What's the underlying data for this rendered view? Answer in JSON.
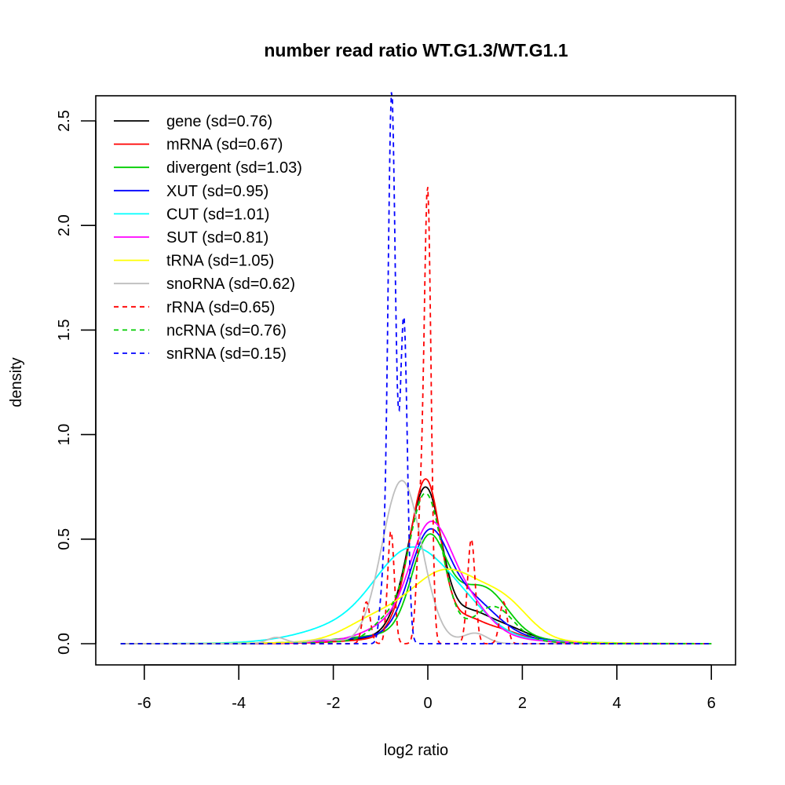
{
  "chart_data": {
    "type": "line",
    "title": "number read ratio WT.G1.3/WT.G1.1",
    "xlabel": "log2 ratio",
    "ylabel": "density",
    "xlim": [
      -6.5,
      6.0
    ],
    "ylim": [
      0,
      2.52
    ],
    "xticks": [
      -6,
      -4,
      -2,
      0,
      2,
      4,
      6
    ],
    "xtick_labels": [
      "-6",
      "-4",
      "-2",
      "0",
      "2",
      "4",
      "6"
    ],
    "yticks": [
      0.0,
      0.5,
      1.0,
      1.5,
      2.0,
      2.5
    ],
    "ytick_labels": [
      "0.0",
      "0.5",
      "1.0",
      "1.5",
      "2.0",
      "2.5"
    ],
    "grid": false,
    "legend_position": "top-left",
    "series": [
      {
        "name": "gene",
        "label": "gene (sd=0.76)",
        "sd": 0.76,
        "color": "#000000",
        "dash": "solid",
        "components": [
          [
            0.0,
            0.32,
            0.58
          ],
          [
            -0.35,
            0.35,
            0.18
          ],
          [
            0.85,
            0.35,
            0.08
          ],
          [
            1.5,
            0.5,
            0.06
          ],
          [
            0.3,
            1.4,
            0.05
          ]
        ]
      },
      {
        "name": "mRNA",
        "label": "mRNA (sd=0.67)",
        "sd": 0.67,
        "color": "#ff0000",
        "dash": "solid",
        "components": [
          [
            0.0,
            0.3,
            0.6
          ],
          [
            -0.3,
            0.35,
            0.2
          ],
          [
            0.8,
            0.3,
            0.06
          ],
          [
            1.4,
            0.5,
            0.05
          ],
          [
            0.2,
            1.3,
            0.04
          ]
        ]
      },
      {
        "name": "divergent",
        "label": "divergent (sd=1.03)",
        "sd": 1.03,
        "color": "#00cd00",
        "dash": "solid",
        "components": [
          [
            0.0,
            0.35,
            0.4
          ],
          [
            1.3,
            0.45,
            0.17
          ],
          [
            0.6,
            0.5,
            0.12
          ],
          [
            0.2,
            1.5,
            0.06
          ]
        ]
      },
      {
        "name": "XUT",
        "label": "XUT (sd=0.95)",
        "sd": 0.95,
        "color": "#0000ff",
        "dash": "solid",
        "components": [
          [
            0.0,
            0.4,
            0.42
          ],
          [
            0.8,
            0.6,
            0.18
          ],
          [
            0.2,
            1.5,
            0.05
          ]
        ]
      },
      {
        "name": "CUT",
        "label": "CUT (sd=1.01)",
        "sd": 1.01,
        "color": "#00ffff",
        "dash": "solid",
        "components": [
          [
            -0.35,
            0.75,
            0.4
          ],
          [
            0.8,
            0.6,
            0.1
          ],
          [
            -1.8,
            0.9,
            0.06
          ],
          [
            0.0,
            2.0,
            0.03
          ]
        ]
      },
      {
        "name": "SUT",
        "label": "SUT (sd=0.81)",
        "sd": 0.81,
        "color": "#ff00ff",
        "dash": "solid",
        "components": [
          [
            0.0,
            0.4,
            0.4
          ],
          [
            0.6,
            0.55,
            0.22
          ],
          [
            -0.8,
            0.5,
            0.06
          ],
          [
            0.2,
            1.5,
            0.04
          ]
        ]
      },
      {
        "name": "tRNA",
        "label": "tRNA (sd=1.05)",
        "sd": 1.05,
        "color": "#ffff00",
        "dash": "solid",
        "components": [
          [
            0.4,
            0.8,
            0.33
          ],
          [
            1.7,
            0.5,
            0.12
          ],
          [
            -1.2,
            0.6,
            0.08
          ],
          [
            0.3,
            2.0,
            0.02
          ]
        ]
      },
      {
        "name": "snoRNA",
        "label": "snoRNA (sd=0.62)",
        "sd": 0.62,
        "color": "#bebebe",
        "dash": "solid",
        "components": [
          [
            -0.55,
            0.42,
            0.78
          ],
          [
            1.0,
            0.25,
            0.05
          ],
          [
            -3.2,
            0.2,
            0.03
          ],
          [
            -2.2,
            0.3,
            0.02
          ]
        ]
      },
      {
        "name": "rRNA",
        "label": "rRNA (sd=0.65)",
        "sd": 0.65,
        "color": "#ff0000",
        "dash": "dashed",
        "components": [
          [
            0.0,
            0.07,
            2.08
          ],
          [
            -0.78,
            0.07,
            0.54
          ],
          [
            0.92,
            0.08,
            0.5
          ],
          [
            -1.3,
            0.08,
            0.2
          ],
          [
            1.6,
            0.08,
            0.2
          ],
          [
            -0.15,
            0.08,
            0.6
          ]
        ]
      },
      {
        "name": "ncRNA",
        "label": "ncRNA (sd=0.76)",
        "sd": 0.76,
        "color": "#00cd00",
        "dash": "dashed",
        "components": [
          [
            -0.05,
            0.35,
            0.68
          ],
          [
            1.4,
            0.4,
            0.15
          ],
          [
            -0.9,
            0.3,
            0.08
          ],
          [
            0.3,
            1.3,
            0.04
          ]
        ]
      },
      {
        "name": "snRNA",
        "label": "snRNA (sd=0.15)",
        "sd": 0.15,
        "color": "#0000ff",
        "dash": "dashed",
        "components": [
          [
            -0.77,
            0.075,
            2.4
          ],
          [
            -0.5,
            0.07,
            1.25
          ],
          [
            -0.95,
            0.07,
            0.25
          ],
          [
            -0.62,
            0.12,
            0.5
          ]
        ]
      }
    ]
  }
}
